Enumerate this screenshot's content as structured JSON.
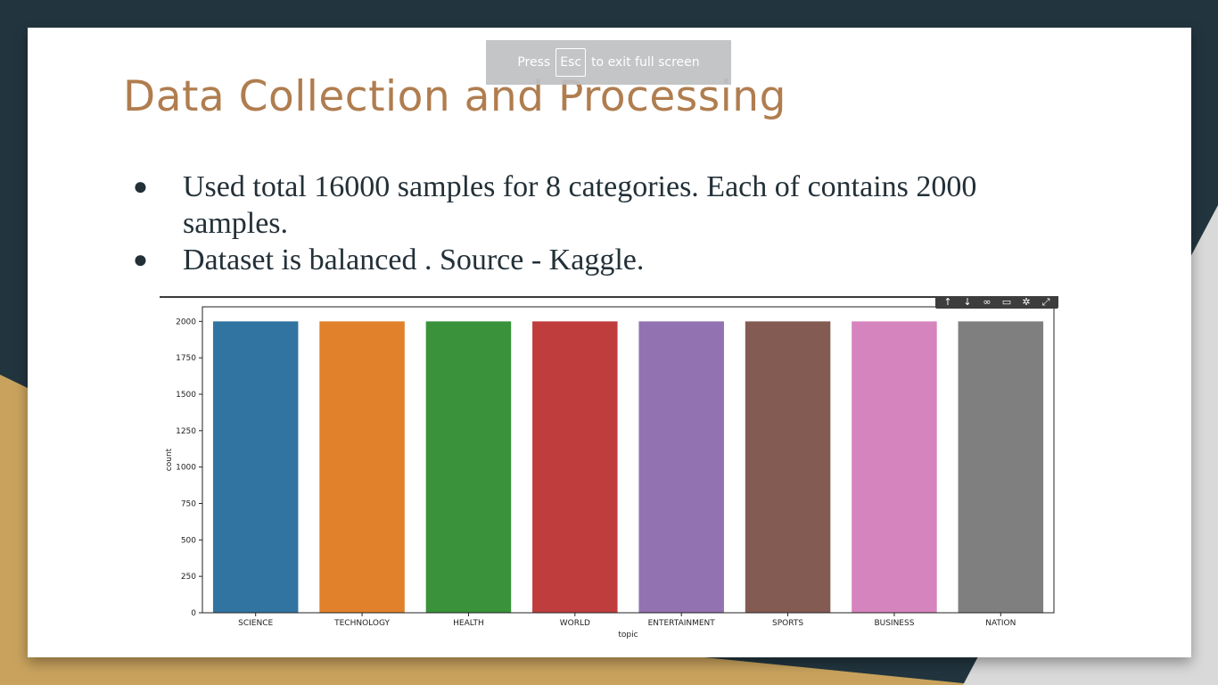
{
  "fullscreen_notice": {
    "before": "Press",
    "key": "Esc",
    "after": "to exit full screen"
  },
  "slide": {
    "title": "Data Collection and Processing",
    "bullets": [
      "Used total 16000 samples for 8 categories. Each of contains 2000 samples.",
      "Dataset is balanced . Source - Kaggle."
    ]
  },
  "chart_toolbar": {
    "icons": [
      "arrow-up-icon",
      "arrow-down-icon",
      "link-icon",
      "comment-icon",
      "gear-icon",
      "expand-icon"
    ]
  },
  "colors": {
    "title": "#b07d4f",
    "background_dark": "#22353f",
    "background_gold": "#c9a35e",
    "slide_bg": "#ffffff"
  },
  "chart_data": {
    "type": "bar",
    "categories": [
      "SCIENCE",
      "TECHNOLOGY",
      "HEALTH",
      "WORLD",
      "ENTERTAINMENT",
      "SPORTS",
      "BUSINESS",
      "NATION"
    ],
    "values": [
      2000,
      2000,
      2000,
      2000,
      2000,
      2000,
      2000,
      2000
    ],
    "colors": [
      "#3274a1",
      "#e1812c",
      "#3a923a",
      "#c03d3e",
      "#9372b2",
      "#845b53",
      "#d684bd",
      "#7f7f7f"
    ],
    "xlabel": "topic",
    "ylabel": "count",
    "ylim": [
      0,
      2100
    ],
    "yticks": [
      0,
      250,
      500,
      750,
      1000,
      1250,
      1500,
      1750,
      2000
    ],
    "grid": false
  }
}
